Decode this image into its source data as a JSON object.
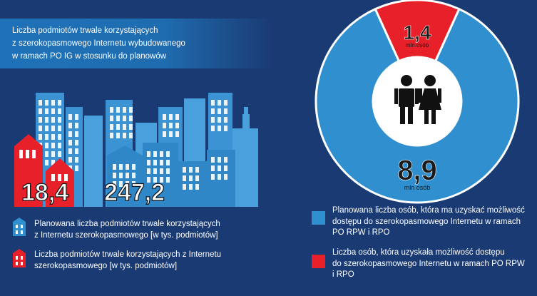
{
  "title": "Liczba podmiotów trwale korzystających\nz szerokopasmowego Internetu wybudowanego\nw ramach PO IG w stosunku do planowów",
  "colors": {
    "background": "#1a3a73",
    "planned_blue": "#2f8fcf",
    "actual_red": "#e8202a",
    "title_band": "#1f72b8"
  },
  "chart_data": [
    {
      "type": "bar",
      "title": "Liczba podmiotów trwale korzystających z szerokopasmowego Internetu wybudowanego w ramach PO IG w stosunku do planowów",
      "unit": "tys. podmiotów",
      "series": [
        {
          "name": "Planowana liczba podmiotów trwale korzystających z Internetu szerokopasmowego [w tys. podmiotów]",
          "values": [
            247.2
          ],
          "label": "247,2",
          "color": "#2f8fcf"
        },
        {
          "name": "Liczba podmiotów trwale korzystających z Internetu szerokopasmowego [w tys. podmiotów]",
          "values": [
            18.4
          ],
          "label": "18,4",
          "color": "#e8202a"
        }
      ]
    },
    {
      "type": "pie",
      "unit": "mln osób",
      "slices": [
        {
          "name": "Planowana liczba osób, która ma uzyskać możliwość dostępu do szerokopasmowego Internetu w ramach PO RPW i RPO",
          "value": 8.9,
          "label": "8,9",
          "color": "#2f8fcf"
        },
        {
          "name": "Liczba osób, która uzyskała możliwość dostępu do szerokopasmowego Internetu w ramach PO RPW i RPO",
          "value": 1.4,
          "label": "1,4",
          "color": "#e8202a"
        }
      ]
    }
  ],
  "labels": {
    "value_actual": "18,4",
    "value_planned": "247,2",
    "donut_big": "8,9",
    "donut_small": "1,4",
    "unit_people": "mln osób"
  },
  "legend_left": [
    {
      "text": "Planowana liczba podmiotów trwale korzystających\nz Internetu szerokopasmowego  [w tys. podmiotów]",
      "icon": "building-icon",
      "color": "#2f8fcf"
    },
    {
      "text": "Liczba podmiotów trwale korzystających z Internetu\nszerokopasmowego  [w tys. podmiotów]",
      "icon": "house-icon",
      "color": "#e8202a"
    }
  ],
  "legend_right": [
    {
      "text": "Planowana liczba osób, która ma uzyskać możliwość\ndostępu do szerokopasmowego  Internetu w ramach\nPO RPW i RPO",
      "color": "#2f8fcf"
    },
    {
      "text": "Liczba osób, która uzyskała możliwość dostępu\ndo szerokopasmowego Internetu  w ramach PO RPW\ni RPO",
      "color": "#e8202a"
    }
  ],
  "icons": {
    "center": "man-woman-icon"
  }
}
